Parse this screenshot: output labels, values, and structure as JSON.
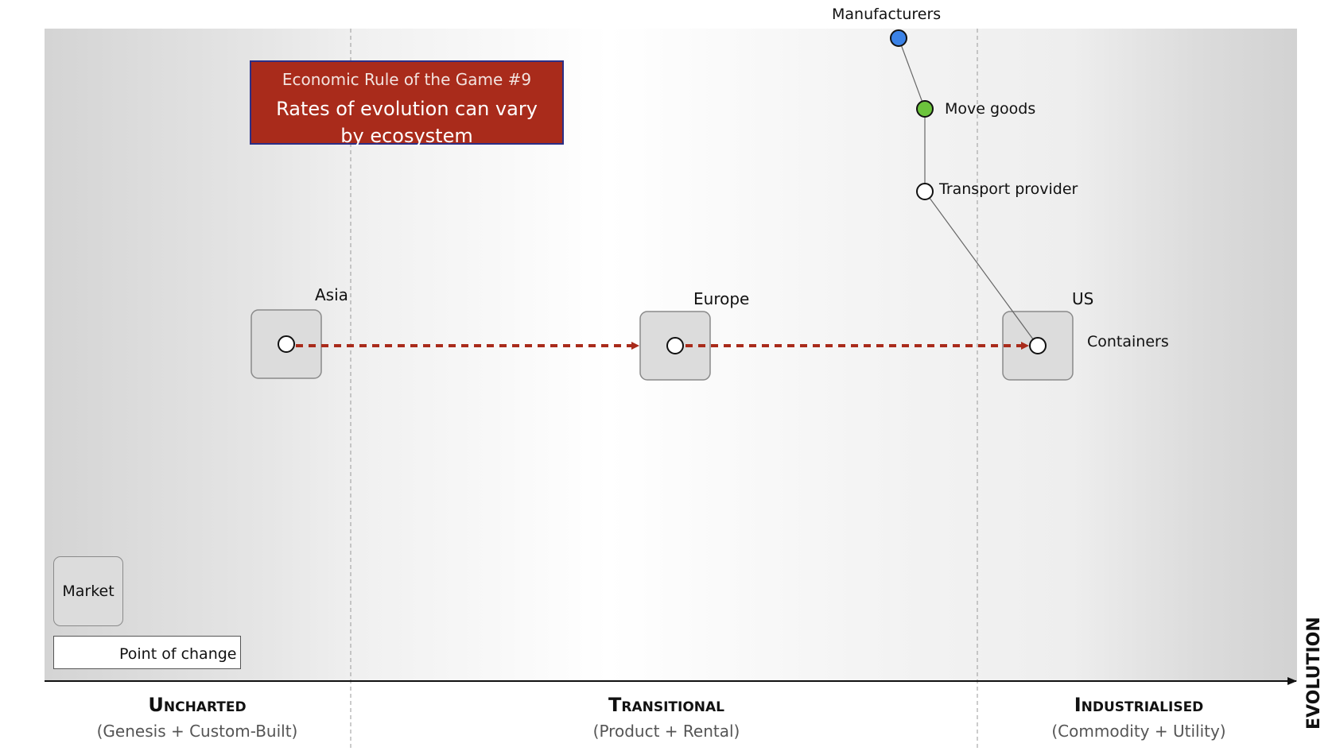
{
  "title": {
    "subtitle": "Economic Rule of the Game #9",
    "text": "Rates of evolution can vary by ecosystem"
  },
  "components": [
    {
      "id": "manufacturers",
      "label": "Manufacturers",
      "fill": "#3b82e6"
    },
    {
      "id": "move_goods",
      "label": "Move goods",
      "fill": "#6cc43c"
    },
    {
      "id": "transport",
      "label": "Transport provider",
      "fill": "#ffffff"
    },
    {
      "id": "containers",
      "label": "Containers",
      "fill": "#ffffff"
    }
  ],
  "markets": [
    {
      "id": "asia",
      "label": "Asia"
    },
    {
      "id": "europe",
      "label": "Europe"
    },
    {
      "id": "us",
      "label": "US"
    }
  ],
  "legend": {
    "market_label": "Market",
    "change_label": "Point of change"
  },
  "stages": [
    {
      "title": "Uncharted",
      "subtitle": "(Genesis + Custom-Built)"
    },
    {
      "title": "Transitional",
      "subtitle": "(Product + Rental)"
    },
    {
      "title": "Industrialised",
      "subtitle": "(Commodity + Utility)"
    }
  ],
  "axis": {
    "x_label": "EVOLUTION"
  },
  "colors": {
    "change": "#a92b1b",
    "title_fill": "#a92b1b",
    "title_border": "#2c2f86"
  }
}
